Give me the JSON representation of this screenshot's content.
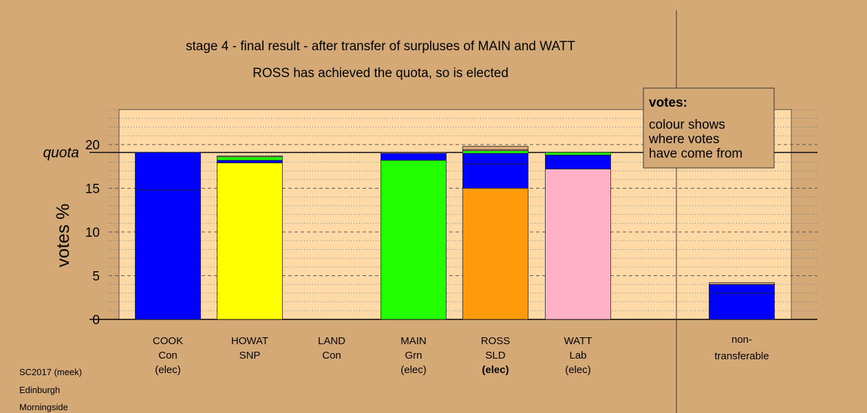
{
  "chart_data": {
    "type": "bar",
    "stacked": true,
    "title": "stage 4 - final result - after transfer of surpluses of MAIN and WATT",
    "subtitle": "ROSS has achieved the quota, so is elected",
    "ylabel": "votes %",
    "ylim": [
      0,
      24
    ],
    "yticks": [
      "0",
      "5",
      "10",
      "15",
      "20"
    ],
    "quota_label": "quota",
    "quota": 19.1,
    "grid": true,
    "colors": {
      "background": "#d4a976",
      "plot_bg": "#ffd9a6",
      "Con": "#0000ff",
      "SNP": "#ffff00",
      "Grn": "#22ff00",
      "SLD": "#ff9a0a",
      "Lab": "#ffb1c8",
      "Other": "#d9a878"
    },
    "categories": [
      {
        "name": "COOK",
        "party": "Con",
        "status": "(elec)",
        "status_bold": false,
        "segments": [
          {
            "from": "Con",
            "value": 14.8
          },
          {
            "from": "Con",
            "value": 4.3
          }
        ]
      },
      {
        "name": "HOWAT",
        "party": "SNP",
        "status": "",
        "status_bold": false,
        "segments": [
          {
            "from": "SNP",
            "value": 17.9
          },
          {
            "from": "Con",
            "value": 0.3
          },
          {
            "from": "Grn",
            "value": 0.4
          },
          {
            "from": "Lab",
            "value": 0.1
          }
        ]
      },
      {
        "name": "LAND",
        "party": "Con",
        "status": "",
        "status_bold": false,
        "segments": []
      },
      {
        "name": "MAIN",
        "party": "Grn",
        "status": "(elec)",
        "status_bold": false,
        "segments": [
          {
            "from": "Grn",
            "value": 18.2
          },
          {
            "from": "Con",
            "value": 0.8
          },
          {
            "from": "Lab",
            "value": 0.1
          }
        ]
      },
      {
        "name": "ROSS",
        "party": "SLD",
        "status": "(elec)",
        "status_bold": true,
        "segments": [
          {
            "from": "SLD",
            "value": 15.0
          },
          {
            "from": "Con",
            "value": 2.8
          },
          {
            "from": "Con",
            "value": 1.2
          },
          {
            "from": "Grn",
            "value": 0.3
          },
          {
            "from": "Lab",
            "value": 0.1
          },
          {
            "from": "Other",
            "value": 0.4
          }
        ]
      },
      {
        "name": "WATT",
        "party": "Lab",
        "status": "(elec)",
        "status_bold": false,
        "segments": [
          {
            "from": "Lab",
            "value": 17.2
          },
          {
            "from": "Con",
            "value": 1.6
          },
          {
            "from": "Grn",
            "value": 0.3
          }
        ]
      }
    ],
    "nontransferable": {
      "label_line1": "non-",
      "label_line2": "transferable",
      "segments": [
        {
          "from": "Con",
          "value": 3.0
        },
        {
          "from": "Con",
          "value": 1.0
        },
        {
          "from": "Other",
          "value": 0.2
        }
      ]
    },
    "legend": {
      "title": "votes:",
      "lines": [
        "colour shows",
        "where votes",
        "have come from"
      ]
    }
  },
  "footer": [
    "SC2017 (meek)",
    "Edinburgh",
    "Morningside"
  ]
}
